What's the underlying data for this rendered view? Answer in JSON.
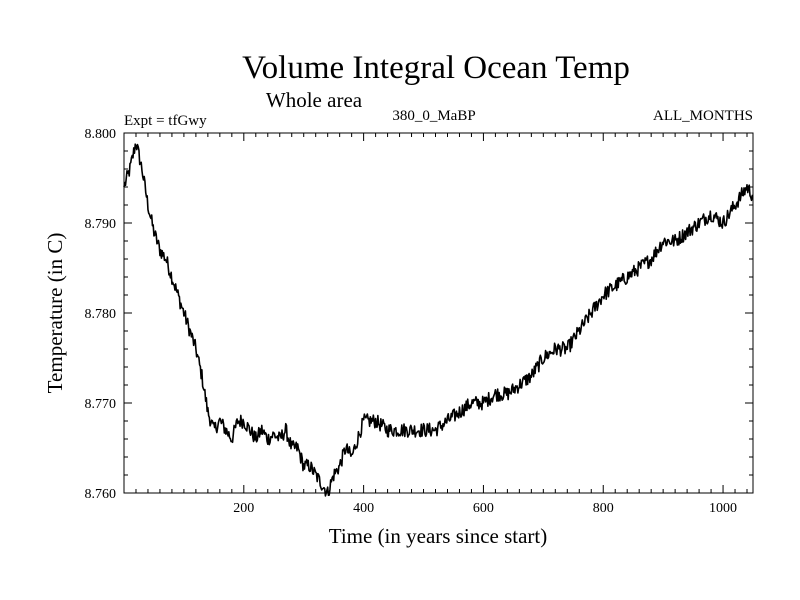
{
  "chart_data": {
    "type": "line",
    "title": "Volume Integral Ocean Temp",
    "subtitle": "Whole area",
    "header": {
      "left": "Expt = tfGwy",
      "center": "380_0_MaBP",
      "right": "ALL_MONTHS"
    },
    "xlabel": "Time (in years since start)",
    "ylabel": "Temperature (in C)",
    "xlim": [
      0,
      1050
    ],
    "ylim": [
      8.76,
      8.8
    ],
    "xticks": [
      200,
      400,
      600,
      800,
      1000
    ],
    "xtick_labels": [
      "200",
      "400",
      "600",
      "800",
      "1000"
    ],
    "yticks": [
      8.76,
      8.77,
      8.78,
      8.79,
      8.8
    ],
    "ytick_labels": [
      "8.760",
      "8.770",
      "8.780",
      "8.790",
      "8.800"
    ],
    "grid": false,
    "series": [
      {
        "name": "Volume Integral Ocean Temp",
        "x": [
          0,
          10,
          20,
          30,
          40,
          50,
          60,
          70,
          80,
          90,
          100,
          110,
          120,
          130,
          140,
          150,
          160,
          170,
          180,
          190,
          200,
          210,
          220,
          230,
          240,
          250,
          260,
          270,
          280,
          290,
          300,
          310,
          320,
          330,
          340,
          350,
          360,
          370,
          380,
          390,
          400,
          420,
          440,
          460,
          480,
          500,
          520,
          540,
          560,
          580,
          600,
          620,
          640,
          660,
          680,
          700,
          720,
          740,
          760,
          780,
          800,
          820,
          840,
          860,
          880,
          900,
          920,
          940,
          960,
          980,
          1000,
          1020,
          1040,
          1050
        ],
        "values": [
          8.794,
          8.796,
          8.799,
          8.796,
          8.792,
          8.789,
          8.787,
          8.786,
          8.784,
          8.782,
          8.78,
          8.778,
          8.776,
          8.773,
          8.769,
          8.767,
          8.768,
          8.767,
          8.766,
          8.768,
          8.768,
          8.767,
          8.766,
          8.767,
          8.766,
          8.7665,
          8.766,
          8.767,
          8.765,
          8.765,
          8.763,
          8.763,
          8.762,
          8.761,
          8.76,
          8.762,
          8.763,
          8.765,
          8.764,
          8.766,
          8.768,
          8.768,
          8.767,
          8.767,
          8.767,
          8.767,
          8.767,
          8.768,
          8.769,
          8.77,
          8.77,
          8.771,
          8.771,
          8.772,
          8.773,
          8.775,
          8.776,
          8.776,
          8.778,
          8.78,
          8.782,
          8.783,
          8.784,
          8.785,
          8.786,
          8.788,
          8.788,
          8.789,
          8.79,
          8.791,
          8.79,
          8.792,
          8.794,
          8.793
        ]
      }
    ]
  }
}
